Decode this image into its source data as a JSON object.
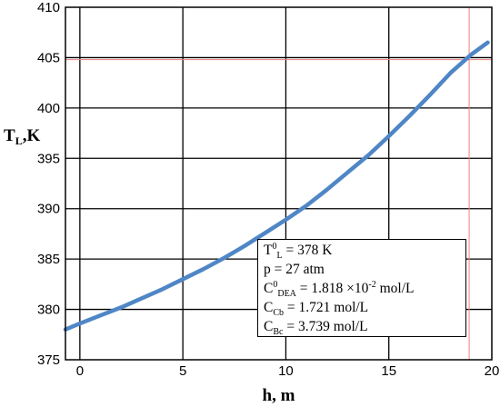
{
  "chart_data": {
    "type": "line",
    "xlabel_main": "h",
    "xlabel_unit": ", m",
    "ylabel_main": "T",
    "ylabel_sub": "L",
    "ylabel_unit": ",K",
    "xlim": [
      -0.7,
      20
    ],
    "ylim": [
      375,
      410
    ],
    "xticks": [
      "0",
      "5",
      "10",
      "15",
      "20"
    ],
    "yticks": [
      "375",
      "380",
      "385",
      "390",
      "395",
      "400",
      "405",
      "410"
    ],
    "grid": true,
    "series": [
      {
        "color": "#4f86c6",
        "x": [
          -0.7,
          0,
          1,
          2,
          3,
          4,
          5,
          6,
          7,
          8,
          9,
          10,
          11,
          12,
          13,
          14,
          15,
          16,
          17,
          18,
          19,
          19.8
        ],
        "y": [
          378.0,
          378.6,
          379.4,
          380.2,
          381.1,
          382.0,
          383.0,
          384.0,
          385.1,
          386.3,
          387.6,
          388.9,
          390.3,
          391.9,
          393.6,
          395.3,
          397.2,
          399.2,
          401.3,
          403.5,
          405.3,
          406.5
        ]
      }
    ],
    "reference_lines": {
      "x": 18.9,
      "y": 404.8,
      "color": "#f08080"
    },
    "annotation": [
      {
        "main": "T",
        "sup": "0",
        "sub": "L",
        "rest": " = 378 K"
      },
      {
        "main": "p = 27 atm",
        "sup": "",
        "sub": "",
        "rest": ""
      },
      {
        "main": "C",
        "sup": "0",
        "sub": "DEA",
        "rest": " = 1.818 ×10",
        "sup2": "-2",
        "rest2": " mol/L"
      },
      {
        "main": "C",
        "sup": "",
        "sub": "Cb",
        "rest": " = 1.721 mol/L"
      },
      {
        "main": "C",
        "sup": "",
        "sub": "Bc",
        "rest": " = 3.739 mol/L"
      }
    ]
  }
}
